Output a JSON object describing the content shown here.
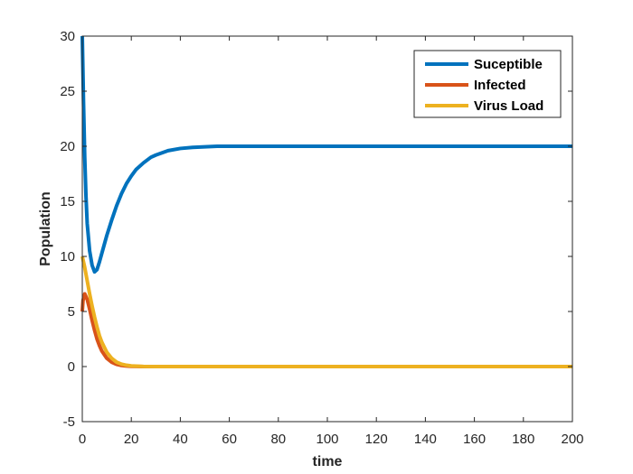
{
  "chart_data": {
    "type": "line",
    "title": "",
    "xlabel": "time",
    "ylabel": "Population",
    "xlim": [
      0,
      200
    ],
    "ylim": [
      -5,
      30
    ],
    "xticks": [
      0,
      20,
      40,
      60,
      80,
      100,
      120,
      140,
      160,
      180,
      200
    ],
    "yticks": [
      -5,
      0,
      5,
      10,
      15,
      20,
      25,
      30
    ],
    "grid": false,
    "legend_position": "top-right",
    "series": [
      {
        "name": "Suceptible",
        "color": "#0072BD",
        "x": [
          0,
          0.5,
          1,
          1.5,
          2,
          3,
          4,
          5,
          6,
          7,
          8,
          10,
          12,
          14,
          16,
          18,
          20,
          22,
          25,
          28,
          30,
          35,
          40,
          45,
          50,
          55,
          60,
          70,
          80,
          100,
          120,
          140,
          160,
          180,
          200
        ],
        "y": [
          30,
          24,
          19,
          15.5,
          13,
          10.5,
          9.2,
          8.6,
          8.8,
          9.5,
          10.3,
          11.9,
          13.3,
          14.6,
          15.7,
          16.6,
          17.3,
          17.9,
          18.5,
          19.0,
          19.2,
          19.6,
          19.8,
          19.9,
          19.95,
          20,
          20,
          20,
          20,
          20,
          20,
          20,
          20,
          20,
          20
        ]
      },
      {
        "name": "Infected",
        "color": "#D95319",
        "x": [
          0,
          0.3,
          1,
          2,
          3,
          4,
          5,
          6,
          7,
          8,
          10,
          12,
          14,
          16,
          18,
          20,
          25,
          30,
          40,
          60,
          100,
          150,
          200
        ],
        "y": [
          5,
          6,
          6.6,
          6.1,
          5.2,
          4.2,
          3.3,
          2.5,
          1.9,
          1.4,
          0.75,
          0.4,
          0.2,
          0.1,
          0.05,
          0.02,
          0,
          0,
          0,
          0,
          0,
          0,
          0
        ]
      },
      {
        "name": "Virus Load",
        "color": "#EDB120",
        "x": [
          0,
          1,
          2,
          3,
          4,
          5,
          6,
          7,
          8,
          10,
          12,
          14,
          16,
          18,
          20,
          25,
          30,
          40,
          60,
          100,
          150,
          200
        ],
        "y": [
          10,
          9.0,
          7.8,
          6.6,
          5.5,
          4.5,
          3.6,
          2.8,
          2.2,
          1.3,
          0.75,
          0.4,
          0.22,
          0.12,
          0.06,
          0.01,
          0,
          0,
          0,
          0,
          0,
          0
        ]
      }
    ]
  }
}
